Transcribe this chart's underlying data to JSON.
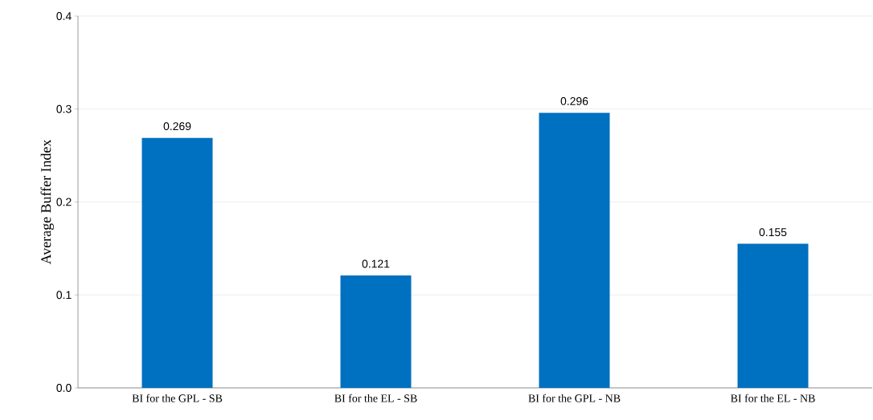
{
  "chart_data": {
    "type": "bar",
    "categories": [
      "BI for the GPL - SB",
      "BI for the EL - SB",
      "BI for the GPL - NB",
      "BI for the EL - NB"
    ],
    "values": [
      0.269,
      0.121,
      0.296,
      0.155
    ],
    "color": "#0070c0",
    "ylabel": "Average Buffer Index",
    "ylim": [
      0,
      0.4
    ],
    "yticks": [
      {
        "value": 0,
        "label": "0.0"
      },
      {
        "value": 0.1,
        "label": "0.1"
      },
      {
        "value": 0.2,
        "label": "0.2"
      },
      {
        "value": 0.3,
        "label": "0.3"
      },
      {
        "value": 0.4,
        "label": "0.4"
      }
    ],
    "grid": "y",
    "data_labels": true
  }
}
